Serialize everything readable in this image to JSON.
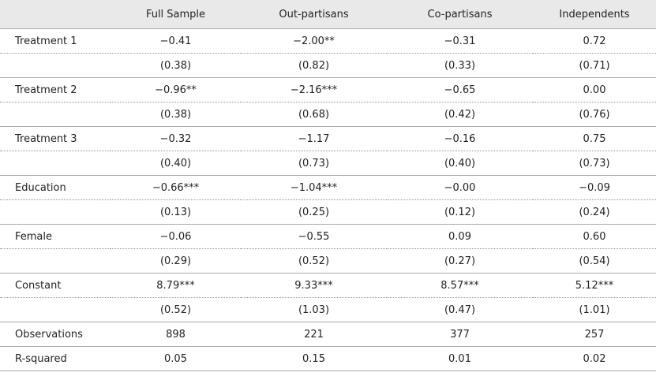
{
  "table": {
    "columns": [
      "Full Sample",
      "Out-partisans",
      "Co-partisans",
      "Independents"
    ],
    "variables": [
      {
        "name": "Treatment 1",
        "coef": [
          "−0.41",
          "−2.00**",
          "−0.31",
          "0.72"
        ],
        "se": [
          "(0.38)",
          "(0.82)",
          "(0.33)",
          "(0.71)"
        ]
      },
      {
        "name": "Treatment 2",
        "coef": [
          "−0.96**",
          "−2.16***",
          "−0.65",
          "0.00"
        ],
        "se": [
          "(0.38)",
          "(0.68)",
          "(0.42)",
          "(0.76)"
        ]
      },
      {
        "name": "Treatment 3",
        "coef": [
          "−0.32",
          "−1.17",
          "−0.16",
          "0.75"
        ],
        "se": [
          "(0.40)",
          "(0.73)",
          "(0.40)",
          "(0.73)"
        ]
      },
      {
        "name": "Education",
        "coef": [
          "−0.66***",
          "−1.04***",
          "−0.00",
          "−0.09"
        ],
        "se": [
          "(0.13)",
          "(0.25)",
          "(0.12)",
          "(0.24)"
        ]
      },
      {
        "name": "Female",
        "coef": [
          "−0.06",
          "−0.55",
          "0.09",
          "0.60"
        ],
        "se": [
          "(0.29)",
          "(0.52)",
          "(0.27)",
          "(0.54)"
        ]
      },
      {
        "name": "Constant",
        "coef": [
          "8.79***",
          "9.33***",
          "8.57***",
          "5.12***"
        ],
        "se": [
          "(0.52)",
          "(1.03)",
          "(0.47)",
          "(1.01)"
        ]
      }
    ],
    "stats": [
      {
        "name": "Observations",
        "values": [
          "898",
          "221",
          "377",
          "257"
        ]
      },
      {
        "name": "R-squared",
        "values": [
          "0.05",
          "0.15",
          "0.01",
          "0.02"
        ]
      }
    ]
  }
}
